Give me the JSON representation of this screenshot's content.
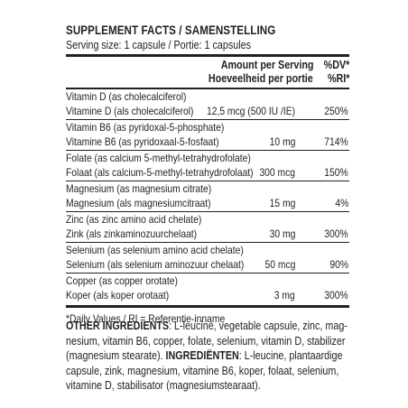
{
  "label": {
    "title": "SUPPLEMENT FACTS / SAMENSTELLING",
    "serving_size": "Serving size: 1 capsule / Portie: 1 capsules",
    "header": {
      "amount_en": "Amount per Serving",
      "amount_nl": "Hoeveelheid per portie",
      "dv_en": "%DV*",
      "dv_nl": "%RI*"
    },
    "nutrients": [
      {
        "name_en": "Vitamin D (as cholecalciferol)",
        "name_nl": "Vitamine D (als cholecalciferol)",
        "amount": "12,5 mcg (500 IU /IE)",
        "dv": "250%"
      },
      {
        "name_en": "Vitamin B6 (as pyridoxal-5-phosphate)",
        "name_nl": "Vitamine B6 (as pyridoxaal-5-fosfaat)",
        "amount": "10 mg",
        "dv": "714%"
      },
      {
        "name_en": "Folate (as calcium 5-methyl-tetrahydrofolate)",
        "name_nl": "Folaat (als calcium-5-methyl-tetrahydrofolaat)",
        "amount": "300 mcg",
        "dv": "150%"
      },
      {
        "name_en": "Magnesium (as magnesium citrate)",
        "name_nl": "Magnesium (als magnesiumcitraat)",
        "amount": "15 mg",
        "dv": "4%"
      },
      {
        "name_en": "Zinc (as zinc amino acid chelate)",
        "name_nl": "Zink (als zinkaminozuurchelaat)",
        "amount": "30 mg",
        "dv": "300%"
      },
      {
        "name_en": "Selenium (as selenium amino acid chelate)",
        "name_nl": "Selenium (als selenium aminozuur chelaat)",
        "amount": "50 mcg",
        "dv": "90%"
      },
      {
        "name_en": "Copper (as copper orotate)",
        "name_nl": "Koper (als koper orotaat)",
        "amount": "3 mg",
        "dv": "300%"
      }
    ],
    "footnote": "*Daily Values / RI = Referentie-inname"
  },
  "ingredients": {
    "other_heading": "OTHER INGREDIENTS",
    "line1_rest": ": L-leucine, vegetable capsule, zinc, mag-",
    "line2": "nesium, vitamin B6, copper, folate, selenium, vitamin D, stabilizer",
    "line3_pre": "(magnesium stearate). ",
    "nl_heading": "INGREDIËNTEN",
    "line3_rest": ": L-leucine, plantaardige",
    "line4": "capsule, zink, magnesium, vitamine B6, koper, folaat, selenium,",
    "line5": "vitamine D, stabilisator (magnesiumstearaat)."
  }
}
